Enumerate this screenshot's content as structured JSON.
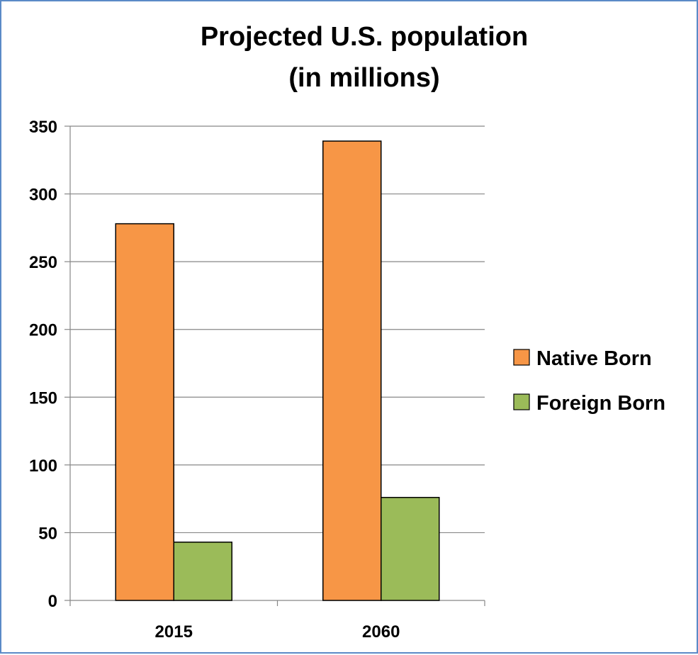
{
  "chart_data": {
    "type": "bar",
    "title": [
      "Projected U.S. population",
      "(in millions)"
    ],
    "categories": [
      "2015",
      "2060"
    ],
    "series": [
      {
        "name": "Native Born",
        "values": [
          278,
          339
        ],
        "color": "#f79646"
      },
      {
        "name": "Foreign Born",
        "values": [
          43,
          76
        ],
        "color": "#9bbb59"
      }
    ],
    "ylim": [
      0,
      350
    ],
    "yticks": [
      0,
      50,
      100,
      150,
      200,
      250,
      300,
      350
    ],
    "grid": true,
    "legend_position": "right"
  }
}
